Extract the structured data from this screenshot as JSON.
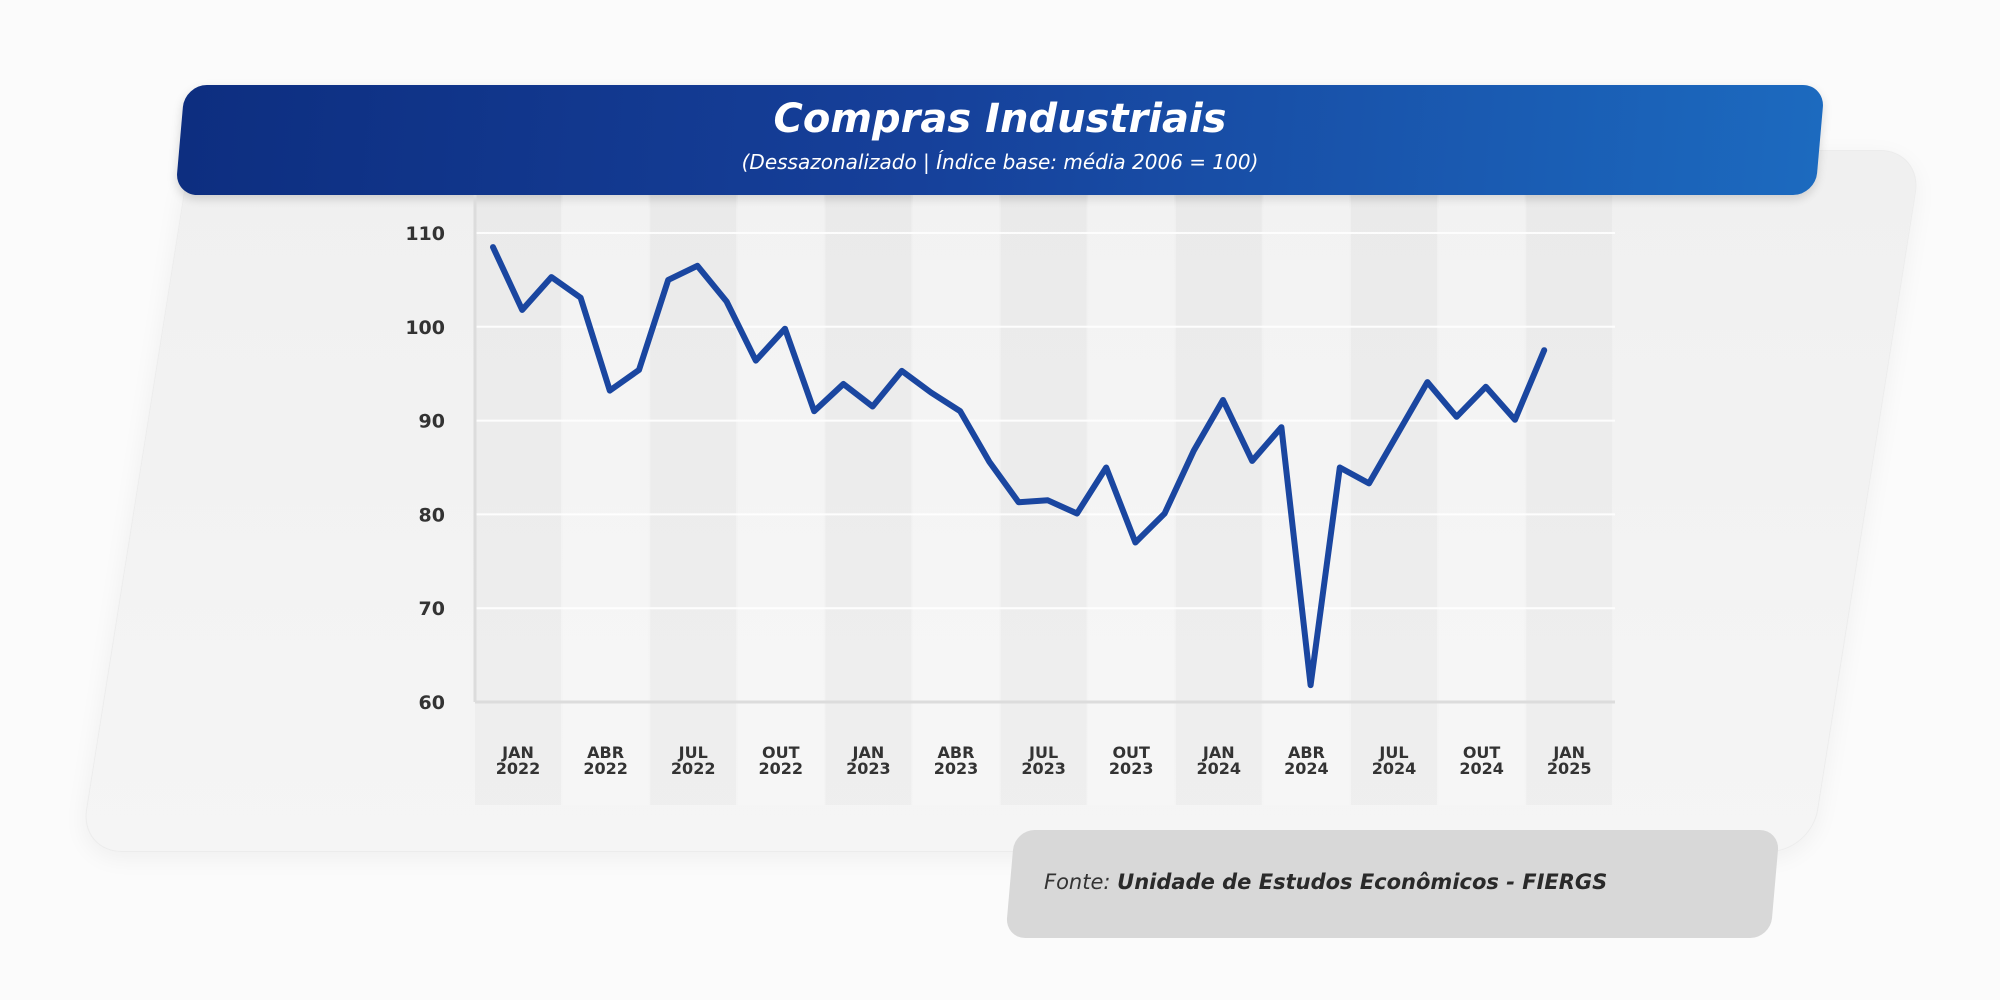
{
  "header": {
    "title": "Compras Industriais",
    "subtitle": "(Dessazonalizado | Índice base: média 2006 = 100)"
  },
  "source": {
    "prefix": "Fonte:",
    "name": "Unidade de Estudos Econômicos - FIERGS"
  },
  "colors": {
    "line": "#1a46a0",
    "header_start": "#0d2e80",
    "header_end": "#1c6abf"
  },
  "chart_data": {
    "type": "line",
    "title": "Compras Industriais",
    "subtitle": "(Dessazonalizado | Índice base: média 2006 = 100)",
    "x_start": "2022-01",
    "x_end": "2025-02",
    "x_ticks": [
      [
        "JAN",
        "2022"
      ],
      [
        "ABR",
        "2022"
      ],
      [
        "JUL",
        "2022"
      ],
      [
        "OUT",
        "2022"
      ],
      [
        "JAN",
        "2023"
      ],
      [
        "ABR",
        "2023"
      ],
      [
        "JUL",
        "2023"
      ],
      [
        "OUT",
        "2023"
      ],
      [
        "JAN",
        "2024"
      ],
      [
        "ABR",
        "2024"
      ],
      [
        "JUL",
        "2024"
      ],
      [
        "OUT",
        "2024"
      ],
      [
        "JAN",
        "2025"
      ]
    ],
    "y_ticks": [
      60,
      70,
      80,
      90,
      100,
      110
    ],
    "ylim": [
      60,
      110
    ],
    "grid": "horizontal",
    "series": [
      {
        "values": [
          108.5,
          101.8,
          105.3,
          103.1,
          93.2,
          95.4,
          105.0,
          106.5,
          102.7,
          96.4,
          99.8,
          91.0,
          93.9,
          91.5,
          95.3,
          93.0,
          91.0,
          85.6,
          81.3,
          81.5,
          80.1,
          85.0,
          77.0,
          80.1,
          86.8,
          92.2,
          85.7,
          89.3,
          61.8,
          85.0,
          83.3,
          88.7,
          94.1,
          90.4,
          93.6,
          90.1,
          97.5
        ]
      }
    ]
  }
}
